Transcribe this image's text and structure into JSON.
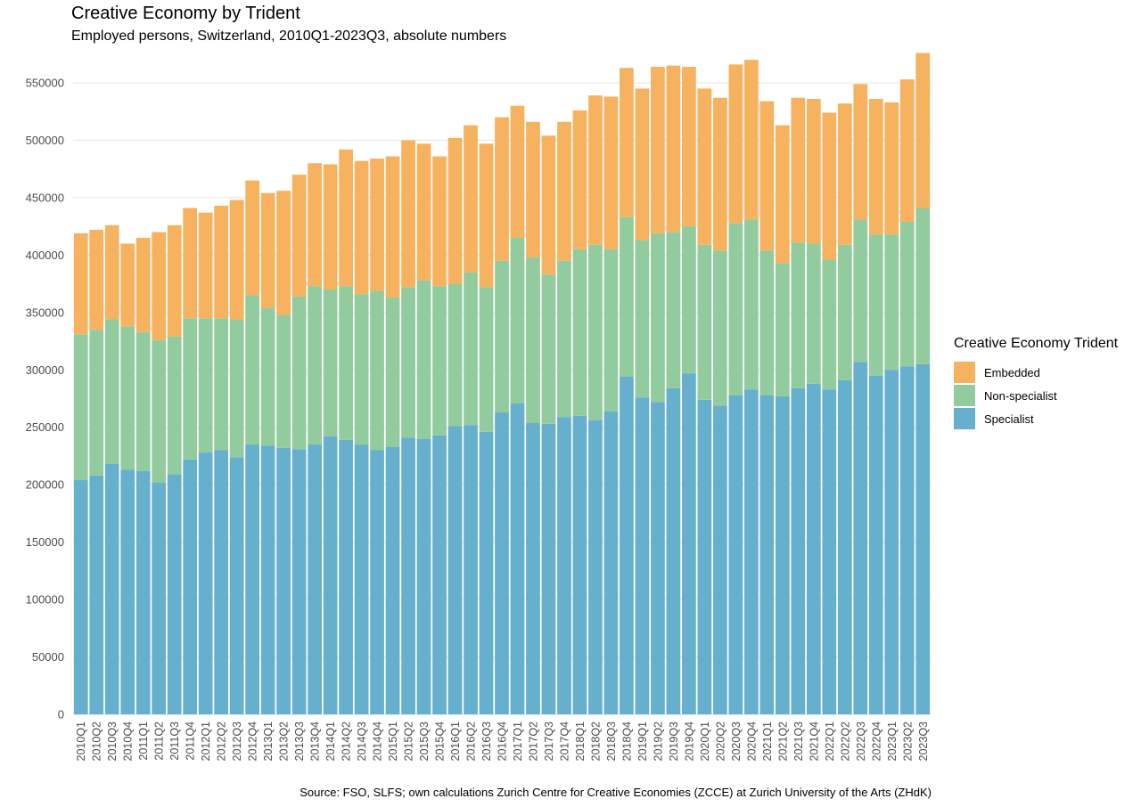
{
  "title": "Creative Economy by Trident",
  "subtitle": "Employed persons, Switzerland, 2010Q1-2023Q3, absolute numbers",
  "caption": "Source: FSO, SLFS; own calculations Zurich Centre for Creative Economies (ZCCE) at Zurich University of the Arts (ZHdK)",
  "legend": {
    "title": "Creative Economy Trident",
    "items": [
      {
        "label": "Embedded",
        "color": "#F6B25E"
      },
      {
        "label": "Non-specialist",
        "color": "#92CB9D"
      },
      {
        "label": "Specialist",
        "color": "#66AFCD"
      }
    ]
  },
  "chart_data": {
    "type": "bar",
    "stacked": true,
    "title": "Creative Economy by Trident",
    "subtitle": "Employed persons, Switzerland, 2010Q1-2023Q3, absolute numbers",
    "xlabel": "",
    "ylabel": "",
    "ylim": [
      0,
      575000
    ],
    "yticks": [
      0,
      50000,
      100000,
      150000,
      200000,
      250000,
      300000,
      350000,
      400000,
      450000,
      500000,
      550000
    ],
    "grid": true,
    "legend_position": "right",
    "categories": [
      "2010Q1",
      "2010Q2",
      "2010Q3",
      "2010Q4",
      "2011Q1",
      "2011Q2",
      "2011Q3",
      "2011Q4",
      "2012Q1",
      "2012Q2",
      "2012Q3",
      "2012Q4",
      "2013Q1",
      "2013Q2",
      "2013Q3",
      "2013Q4",
      "2014Q1",
      "2014Q2",
      "2014Q3",
      "2014Q4",
      "2015Q1",
      "2015Q2",
      "2015Q3",
      "2015Q4",
      "2016Q1",
      "2016Q2",
      "2016Q3",
      "2016Q4",
      "2017Q1",
      "2017Q2",
      "2017Q3",
      "2017Q4",
      "2018Q1",
      "2018Q2",
      "2018Q3",
      "2018Q4",
      "2019Q1",
      "2019Q2",
      "2019Q3",
      "2019Q4",
      "2020Q1",
      "2020Q2",
      "2020Q3",
      "2020Q4",
      "2021Q1",
      "2021Q2",
      "2021Q3",
      "2021Q4",
      "2022Q1",
      "2022Q2",
      "2022Q3",
      "2022Q4",
      "2023Q1",
      "2023Q2",
      "2023Q3"
    ],
    "series": [
      {
        "name": "Specialist",
        "color": "#66AFCD",
        "values": [
          204000,
          208000,
          218000,
          213000,
          212000,
          202000,
          209000,
          222000,
          228000,
          230000,
          224000,
          235000,
          234000,
          232000,
          231000,
          235000,
          242000,
          239000,
          235000,
          230000,
          233000,
          241000,
          240000,
          243000,
          251000,
          252000,
          246000,
          263000,
          271000,
          254000,
          253000,
          259000,
          260000,
          256000,
          264000,
          294000,
          276000,
          272000,
          284000,
          297000,
          274000,
          269000,
          278000,
          283000,
          278000,
          277000,
          284000,
          288000,
          283000,
          291000,
          307000,
          295000,
          300000,
          303000,
          305000
        ]
      },
      {
        "name": "Non-specialist",
        "color": "#92CB9D",
        "values": [
          127000,
          127000,
          126000,
          125000,
          121000,
          124000,
          120000,
          123000,
          117000,
          115000,
          120000,
          130000,
          120000,
          116000,
          133000,
          138000,
          128000,
          134000,
          131000,
          139000,
          130000,
          131000,
          138000,
          130000,
          124000,
          133000,
          126000,
          132000,
          144000,
          144000,
          130000,
          136000,
          145000,
          153000,
          141000,
          139000,
          137000,
          147000,
          136000,
          128000,
          135000,
          135000,
          150000,
          148000,
          126000,
          116000,
          127000,
          122000,
          113000,
          118000,
          124000,
          123000,
          118000,
          126000,
          136000
        ]
      },
      {
        "name": "Embedded",
        "color": "#F6B25E",
        "values": [
          88000,
          87000,
          82000,
          72000,
          82000,
          94000,
          97000,
          96000,
          92000,
          98000,
          104000,
          100000,
          100000,
          108000,
          106000,
          107000,
          109000,
          119000,
          116000,
          115000,
          123000,
          128000,
          119000,
          113000,
          127000,
          128000,
          125000,
          125000,
          115000,
          118000,
          121000,
          121000,
          121000,
          130000,
          133000,
          130000,
          132000,
          145000,
          145000,
          139000,
          136000,
          133000,
          138000,
          139000,
          130000,
          120000,
          126000,
          126000,
          128000,
          123000,
          118000,
          118000,
          115000,
          124000,
          135000
        ]
      }
    ]
  }
}
